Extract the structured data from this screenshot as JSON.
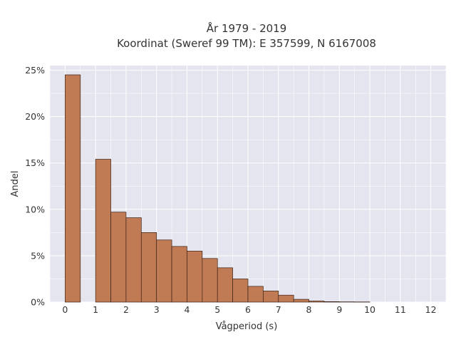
{
  "chart_data": {
    "type": "bar",
    "title": "År 1979 - 2019",
    "subtitle": "Koordinat (Sweref 99 TM): E 357599, N 6167008",
    "xlabel": "Vågperiod (s)",
    "ylabel": "Andel",
    "x_ticks": [
      "0",
      "1",
      "2",
      "3",
      "4",
      "5",
      "6",
      "7",
      "8",
      "9",
      "10",
      "11",
      "12"
    ],
    "y_ticks": [
      "0%",
      "5%",
      "10%",
      "15%",
      "20%",
      "25%"
    ],
    "xlim": [
      -0.5,
      12.5
    ],
    "ylim": [
      0,
      0.255
    ],
    "grid": true,
    "bin_width": 0.5,
    "bar_color": "#c07a54",
    "bar_edge_color": "#3a2418",
    "background_color": "#e5e5ef",
    "bins": [
      {
        "x0": 0.0,
        "value": 0.245
      },
      {
        "x0": 1.0,
        "value": 0.154
      },
      {
        "x0": 1.5,
        "value": 0.097
      },
      {
        "x0": 2.0,
        "value": 0.091
      },
      {
        "x0": 2.5,
        "value": 0.075
      },
      {
        "x0": 3.0,
        "value": 0.067
      },
      {
        "x0": 3.5,
        "value": 0.06
      },
      {
        "x0": 4.0,
        "value": 0.055
      },
      {
        "x0": 4.5,
        "value": 0.047
      },
      {
        "x0": 5.0,
        "value": 0.037
      },
      {
        "x0": 5.5,
        "value": 0.025
      },
      {
        "x0": 6.0,
        "value": 0.017
      },
      {
        "x0": 6.5,
        "value": 0.012
      },
      {
        "x0": 7.0,
        "value": 0.0075
      },
      {
        "x0": 7.5,
        "value": 0.003
      },
      {
        "x0": 8.0,
        "value": 0.0012
      },
      {
        "x0": 8.5,
        "value": 0.0005
      },
      {
        "x0": 9.0,
        "value": 0.0003
      },
      {
        "x0": 9.5,
        "value": 0.0002
      }
    ]
  }
}
